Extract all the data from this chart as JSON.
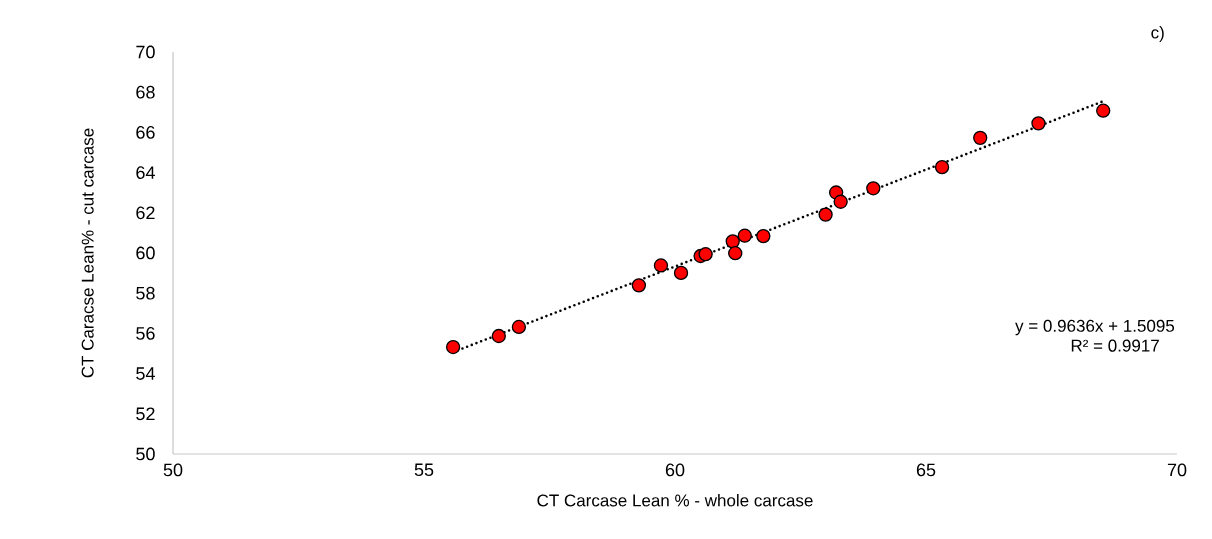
{
  "chart_data": {
    "type": "scatter",
    "xlabel": "CT Carcase Lean % - whole carcase",
    "ylabel": "CT Caracse Lean% - cut carcase",
    "x": [
      55.58,
      56.49,
      56.89,
      59.28,
      59.72,
      60.12,
      60.51,
      60.61,
      61.15,
      61.2,
      61.39,
      61.76,
      63.0,
      63.21,
      63.3,
      63.95,
      65.32,
      66.08,
      67.24,
      68.53
    ],
    "series": [
      {
        "color": "#ff0000",
        "values": [
          55.32,
          55.87,
          56.32,
          58.39,
          59.38,
          59.01,
          59.85,
          59.94,
          60.58,
          59.99,
          60.86,
          60.84,
          61.91,
          63.01,
          62.55,
          63.22,
          64.27,
          65.73,
          66.45,
          67.08
        ],
        "marker": "circle"
      },
      {
        "type": "line",
        "color": "#000000",
        "line_style": "dotted",
        "marker": "none",
        "x": [
          55.58,
          68.53
        ],
        "values": [
          55.07,
          67.55
        ]
      }
    ],
    "xlim": [
      50,
      70
    ],
    "xticks": [
      50,
      55,
      60,
      65,
      70
    ],
    "ylim": [
      50,
      70
    ],
    "yticks": [
      50,
      52,
      54,
      56,
      58,
      60,
      62,
      64,
      66,
      68,
      70
    ],
    "grid": false,
    "annotations": [
      "c)",
      "y = 0.9636x + 1.5095",
      "R² = 0.9917"
    ]
  }
}
